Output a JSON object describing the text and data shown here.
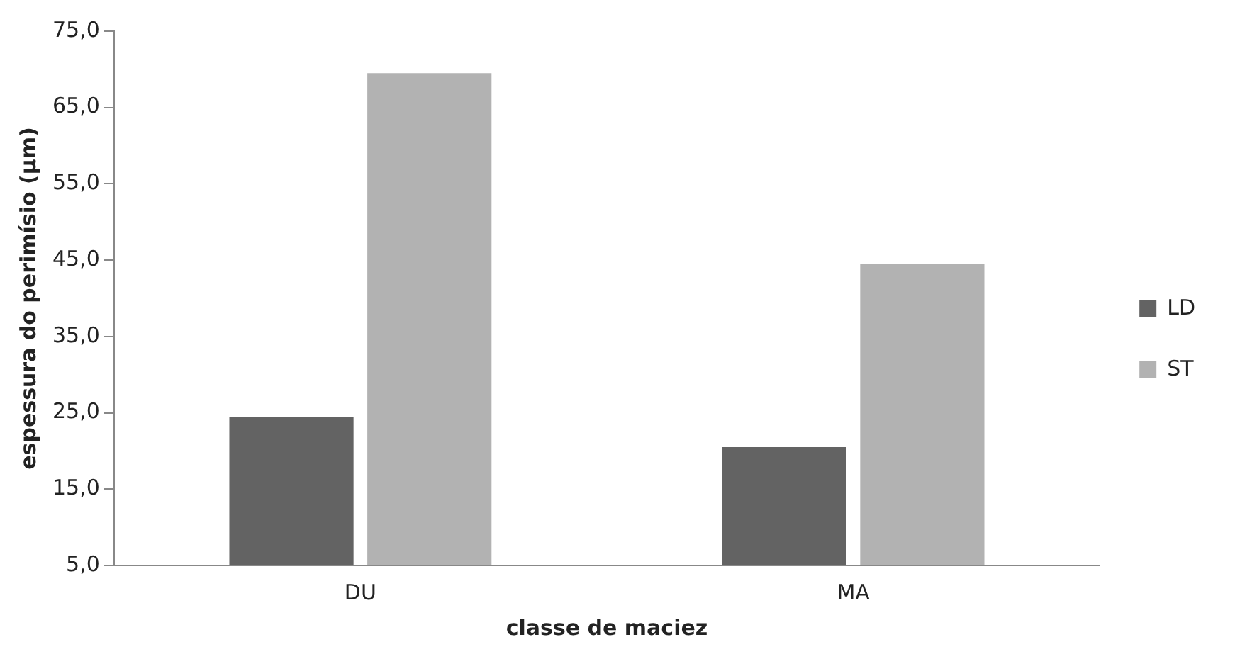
{
  "chart_data": {
    "type": "bar",
    "xlabel": "classe de maciez",
    "ylabel": "espessura do perimísio (µm)",
    "categories": [
      "DU",
      "MA"
    ],
    "series": [
      {
        "name": "LD",
        "color": "#636363",
        "values": [
          24.5,
          20.5
        ]
      },
      {
        "name": "ST",
        "color": "#b2b2b2",
        "values": [
          69.5,
          44.5
        ]
      }
    ],
    "ylim": [
      5,
      75
    ],
    "yticks": [
      {
        "value": 5,
        "label": "5,0"
      },
      {
        "value": 15,
        "label": "15,0"
      },
      {
        "value": 25,
        "label": "25,0"
      },
      {
        "value": 35,
        "label": "35,0"
      },
      {
        "value": 45,
        "label": "45,0"
      },
      {
        "value": 55,
        "label": "55,0"
      },
      {
        "value": 65,
        "label": "65,0"
      },
      {
        "value": 75,
        "label": "75,0"
      }
    ],
    "grid": false,
    "legend": "right"
  }
}
